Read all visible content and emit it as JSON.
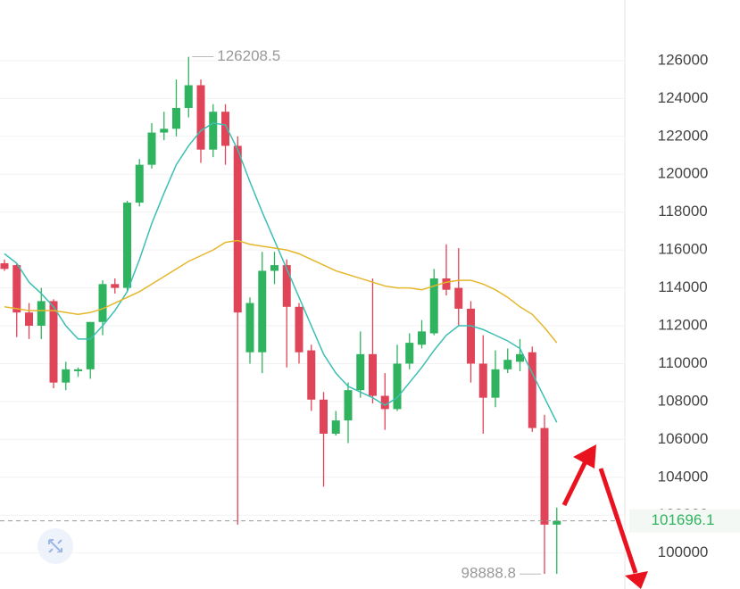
{
  "chart_data": {
    "type": "candlestick",
    "ylim": [
      98100,
      129200
    ],
    "yticks": [
      100000,
      102000,
      104000,
      106000,
      108000,
      110000,
      112000,
      114000,
      116000,
      118000,
      120000,
      122000,
      124000,
      126000
    ],
    "grid": true,
    "up_color": "#2fb35f",
    "down_color": "#e04458",
    "open": [
      115300,
      115200,
      112700,
      112000,
      113300,
      109000,
      109600,
      109700,
      112200,
      114200,
      114000,
      118500,
      120500,
      122200,
      122400,
      123500,
      124700,
      121300,
      123300,
      121500,
      110600,
      110600,
      114900,
      115200,
      113000,
      110700,
      108100,
      106300,
      107000,
      108600,
      110500,
      108300,
      107600,
      110000,
      111000,
      111600,
      114500,
      114000,
      112900,
      110000,
      108200,
      109700,
      110100,
      110600,
      106600,
      101500
    ],
    "high": [
      115500,
      115300,
      113200,
      114000,
      113400,
      110100,
      109800,
      112200,
      114400,
      114500,
      118600,
      120800,
      122700,
      123300,
      125000,
      126200,
      125000,
      123700,
      123700,
      122000,
      113500,
      115900,
      115900,
      115500,
      113200,
      111000,
      108500,
      107500,
      109000,
      111700,
      114500,
      109500,
      111000,
      111600,
      112300,
      115000,
      116300,
      116100,
      113300,
      111500,
      110700,
      110800,
      111300,
      110900,
      107300,
      102400
    ],
    "low": [
      114900,
      111400,
      111300,
      111300,
      108700,
      108600,
      109300,
      109200,
      111500,
      113700,
      113800,
      118300,
      120300,
      121800,
      122000,
      123000,
      120600,
      120900,
      120500,
      101500,
      110000,
      109500,
      114200,
      109800,
      110000,
      107500,
      103500,
      106200,
      105800,
      108200,
      107900,
      106500,
      107500,
      109700,
      110800,
      111500,
      113600,
      112000,
      109000,
      106300,
      107700,
      109500,
      109600,
      106400,
      98900,
      98900
    ],
    "close": [
      115000,
      112700,
      112000,
      113300,
      109000,
      109700,
      109700,
      112200,
      114200,
      114000,
      118500,
      120500,
      122200,
      122400,
      123500,
      124700,
      121300,
      123300,
      121500,
      112700,
      113200,
      114900,
      115200,
      113000,
      110600,
      108100,
      106300,
      107000,
      108600,
      110500,
      108300,
      107600,
      110000,
      111100,
      111700,
      114500,
      113900,
      112900,
      110000,
      108200,
      109700,
      110200,
      110500,
      106600,
      101500,
      101700
    ],
    "series": [
      {
        "color": "#3cbfb2",
        "values": [
          115800,
          115300,
          114300,
          113700,
          113000,
          112000,
          111300,
          111300,
          112000,
          112800,
          113800,
          115500,
          117400,
          119000,
          120500,
          121500,
          122300,
          122700,
          122600,
          121300,
          119600,
          118000,
          116500,
          115000,
          113500,
          112000,
          110500,
          109500,
          108800,
          108500,
          108200,
          107800,
          108200,
          109000,
          109800,
          110700,
          111500,
          112000,
          112000,
          111800,
          111500,
          111200,
          110800,
          109500,
          108200,
          106900
        ]
      },
      {
        "color": "#e5b62a",
        "values": [
          113000,
          112900,
          112800,
          112800,
          112800,
          112700,
          112600,
          112700,
          112900,
          113200,
          113500,
          113800,
          114200,
          114600,
          115000,
          115400,
          115700,
          116000,
          116400,
          116500,
          116300,
          116200,
          116100,
          116000,
          115800,
          115500,
          115200,
          114900,
          114700,
          114500,
          114300,
          114100,
          114000,
          114000,
          113900,
          114100,
          114300,
          114400,
          114400,
          114200,
          113900,
          113500,
          113000,
          112600,
          111900,
          111100
        ]
      }
    ],
    "max_price": 126208.5,
    "min_price": 98888.8,
    "last_price": 101696.1
  }
}
